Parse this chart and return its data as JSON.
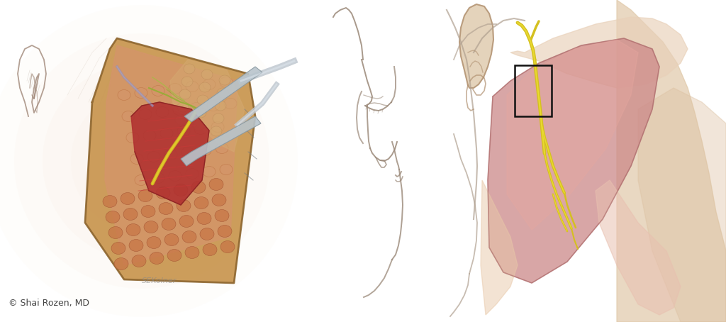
{
  "background_color": "#ffffff",
  "copyright_text": "© Shai Rozen, MD",
  "copyright_fontsize": 9,
  "copyright_color": "#444444",
  "figsize": [
    10.24,
    4.54
  ],
  "dpi": 100,
  "glow_color": "#f5e8d8",
  "ear_left_color": "#d8c8b0",
  "ear_inner_color": "#c8b898",
  "tissue_border_color": "#8b6530",
  "tissue_fill_color": "#c8954e",
  "fat_color": "#d4956a",
  "fat_dark_color": "#c07848",
  "muscle_color": "#b03030",
  "muscle_dark": "#802020",
  "nerve_yellow": "#d4c020",
  "nerve_bright": "#e8d430",
  "green_nerve": "#90b030",
  "instrument_fill": "#b8c4cc",
  "instrument_edge": "#8898a0",
  "instrument_shaft": "#c0c8d0",
  "face_line_color": "#9a8878",
  "face_lw": 1.4,
  "right_ear_color": "#e0ccb0",
  "right_ear_edge": "#b09070",
  "masseter_color": "#c87878",
  "masseter_light": "#e8a898",
  "neck_skin": "#e8c8a8",
  "neck_dark": "#d4b090",
  "neck_shadow": "#c8a880",
  "zyg_color": "#d4a898",
  "box_color": "#111111",
  "signature_color": "#888888"
}
